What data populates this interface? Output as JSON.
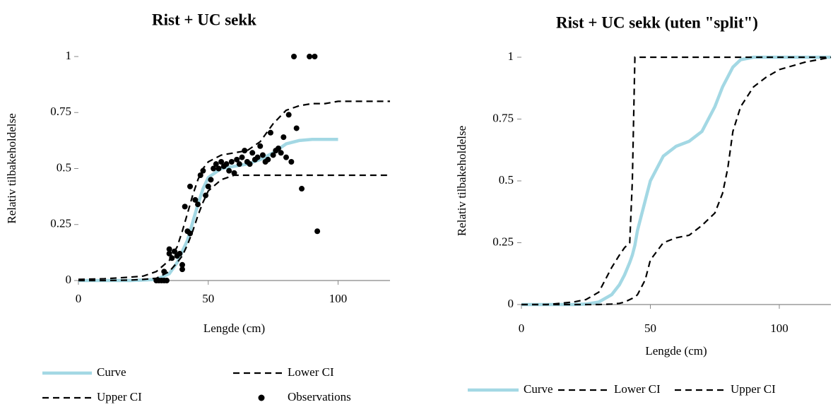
{
  "chart_data": [
    {
      "type": "line",
      "title": "Rist + UC sekk",
      "x_label": "Lengde (cm)",
      "y_label": "Relativ tilbakeholdelse",
      "xlim": [
        0,
        120
      ],
      "ylim": [
        0,
        1
      ],
      "xticks": [
        0,
        50,
        100
      ],
      "yticks": [
        0,
        0.25,
        0.5,
        0.75,
        1
      ],
      "grid": false,
      "legend": "bottom",
      "x": [
        0,
        10,
        20,
        25,
        30,
        35,
        38,
        40,
        42,
        44,
        46,
        48,
        50,
        55,
        60,
        65,
        70,
        75,
        80,
        85,
        90,
        95,
        100,
        110,
        120
      ],
      "series": [
        {
          "name": "Curve",
          "color": "#a3d8e4",
          "style": "solid",
          "values": [
            0,
            0,
            0,
            0.002,
            0.005,
            0.03,
            0.08,
            0.13,
            0.18,
            0.26,
            0.34,
            0.41,
            0.46,
            0.5,
            0.51,
            0.52,
            0.54,
            0.57,
            0.61,
            0.625,
            0.63,
            0.63,
            0.63,
            null,
            null
          ]
        },
        {
          "name": "Lower CI",
          "color": "#000000",
          "style": "dashed",
          "values": [
            0,
            0,
            0.002,
            0.005,
            0.01,
            0.04,
            0.08,
            0.11,
            0.16,
            0.22,
            0.29,
            0.35,
            0.4,
            0.45,
            0.47,
            0.47,
            0.47,
            0.47,
            0.47,
            0.47,
            0.47,
            0.47,
            0.47,
            0.47,
            0.47
          ]
        },
        {
          "name": "Upper CI",
          "color": "#000000",
          "style": "dashed",
          "values": [
            0.005,
            0.008,
            0.015,
            0.02,
            0.04,
            0.09,
            0.15,
            0.22,
            0.3,
            0.38,
            0.45,
            0.5,
            0.53,
            0.56,
            0.57,
            0.58,
            0.62,
            0.7,
            0.76,
            0.78,
            0.79,
            0.79,
            0.8,
            0.8,
            0.8
          ]
        },
        {
          "name": "Observations",
          "color": "#000000",
          "style": "markers",
          "x": [
            30,
            31,
            32,
            33,
            33,
            34,
            35,
            35,
            36,
            37,
            38,
            39,
            40,
            40,
            41,
            42,
            43,
            43,
            45,
            46,
            47,
            48,
            49,
            50,
            51,
            52,
            53,
            54,
            55,
            56,
            57,
            58,
            59,
            60,
            61,
            62,
            63,
            64,
            65,
            66,
            67,
            68,
            69,
            70,
            71,
            72,
            73,
            74,
            75,
            76,
            77,
            78,
            79,
            80,
            81,
            82,
            83,
            84,
            86,
            89,
            91,
            92
          ],
          "values": [
            0,
            0,
            0,
            0,
            0.04,
            0,
            0.14,
            0.12,
            0.1,
            0.13,
            0.11,
            0.12,
            0.07,
            0.05,
            0.33,
            0.22,
            0.21,
            0.42,
            0.36,
            0.34,
            0.47,
            0.49,
            0.38,
            0.42,
            0.45,
            0.5,
            0.52,
            0.5,
            0.53,
            0.51,
            0.52,
            0.49,
            0.53,
            0.48,
            0.54,
            0.52,
            0.55,
            0.58,
            0.53,
            0.52,
            0.57,
            0.54,
            0.55,
            0.6,
            0.56,
            0.53,
            0.54,
            0.66,
            0.56,
            0.58,
            0.59,
            0.57,
            0.64,
            0.55,
            0.74,
            0.53,
            1,
            0.68,
            0.41,
            1,
            1,
            0.22
          ]
        }
      ]
    },
    {
      "type": "line",
      "title": "Rist + UC sekk (uten \"split\")",
      "x_label": "Lengde (cm)",
      "y_label": "Relativ tilbakeholdelse",
      "xlim": [
        0,
        120
      ],
      "ylim": [
        0,
        1
      ],
      "xticks": [
        0,
        50,
        100
      ],
      "yticks": [
        0,
        0.25,
        0.5,
        0.75,
        1
      ],
      "grid": false,
      "legend": "bottom",
      "x": [
        0,
        10,
        20,
        25,
        30,
        35,
        38,
        40,
        42,
        43,
        44,
        45,
        48,
        50,
        55,
        60,
        65,
        70,
        75,
        78,
        80,
        82,
        85,
        90,
        95,
        100,
        110,
        120
      ],
      "series": [
        {
          "name": "Curve",
          "color": "#a3d8e4",
          "style": "solid",
          "values": [
            0,
            0,
            0,
            0.002,
            0.01,
            0.04,
            0.08,
            0.12,
            0.17,
            0.2,
            0.24,
            0.3,
            0.42,
            0.5,
            0.6,
            0.64,
            0.66,
            0.7,
            0.8,
            0.88,
            0.92,
            0.96,
            0.99,
            1,
            1,
            1,
            1,
            1
          ]
        },
        {
          "name": "Lower CI",
          "color": "#000000",
          "style": "dashed",
          "values": [
            0,
            0,
            0.01,
            0.02,
            0.05,
            0.15,
            0.2,
            0.23,
            0.25,
            0.5,
            1,
            1,
            1,
            1,
            1,
            1,
            1,
            1,
            1,
            1,
            1,
            1,
            1,
            1,
            1,
            1,
            1,
            1
          ]
        },
        {
          "name": "Upper CI",
          "color": "#000000",
          "style": "dashed",
          "values": [
            0,
            0,
            0,
            0,
            0,
            0.002,
            0.005,
            0.01,
            0.02,
            0.025,
            0.03,
            0.04,
            0.1,
            0.18,
            0.25,
            0.27,
            0.28,
            0.32,
            0.37,
            0.45,
            0.55,
            0.7,
            0.8,
            0.88,
            0.92,
            0.95,
            0.98,
            1
          ]
        }
      ]
    }
  ]
}
